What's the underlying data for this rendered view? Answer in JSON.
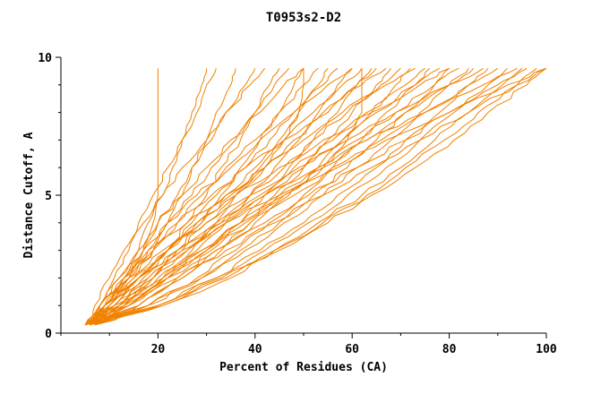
{
  "chart_data": {
    "type": "line",
    "title": "T0953s2-D2",
    "xlabel": "Percent of Residues (CA)",
    "ylabel": "Distance Cutoff, A",
    "xlim": [
      0,
      100
    ],
    "ylim": [
      0,
      10
    ],
    "x_ticks": [
      20,
      40,
      60,
      80,
      100
    ],
    "x_minor_step": 10,
    "y_ticks": [
      0,
      5,
      10
    ],
    "y_minor_step": 1,
    "grid": "off",
    "legend": "none",
    "line_color": "#f08000",
    "axis_color": "#000000",
    "background": "#ffffff",
    "cutoffs": [
      0.3,
      1,
      2,
      3,
      4,
      5,
      6,
      7,
      8,
      9,
      9.6
    ],
    "series": [
      [
        6,
        10,
        14,
        17,
        19,
        20,
        20,
        20,
        20,
        20,
        20
      ],
      [
        5,
        9,
        13,
        16,
        18,
        21,
        23,
        25,
        27,
        29,
        30
      ],
      [
        6,
        8,
        11,
        14,
        16,
        19,
        22,
        25,
        28,
        30,
        32
      ],
      [
        6,
        11,
        15,
        19,
        22,
        25,
        27,
        30,
        32,
        35,
        36
      ],
      [
        7,
        9,
        13,
        17,
        20,
        24,
        27,
        31,
        34,
        38,
        40
      ],
      [
        6,
        7,
        10,
        13,
        17,
        21,
        25,
        30,
        34,
        39,
        42
      ],
      [
        5,
        12,
        17,
        22,
        26,
        30,
        33,
        37,
        40,
        43,
        45
      ],
      [
        6,
        9,
        14,
        18,
        22,
        27,
        31,
        36,
        40,
        44,
        47
      ],
      [
        6,
        13,
        19,
        24,
        29,
        33,
        37,
        41,
        45,
        48,
        50
      ],
      [
        7,
        8,
        12,
        16,
        20,
        25,
        30,
        35,
        41,
        46,
        50
      ],
      [
        6,
        12,
        18,
        24,
        30,
        36,
        42,
        46,
        49,
        50,
        50
      ],
      [
        5,
        9,
        14,
        19,
        24,
        29,
        34,
        40,
        45,
        50,
        53
      ],
      [
        6,
        14,
        21,
        27,
        32,
        36,
        41,
        45,
        49,
        53,
        55
      ],
      [
        7,
        11,
        16,
        22,
        27,
        32,
        38,
        43,
        48,
        54,
        57
      ],
      [
        5,
        14,
        22,
        28,
        34,
        39,
        44,
        49,
        53,
        57,
        60
      ],
      [
        6,
        8,
        12,
        17,
        22,
        28,
        35,
        41,
        48,
        55,
        60
      ],
      [
        6,
        10,
        16,
        22,
        28,
        34,
        40,
        46,
        52,
        58,
        62
      ],
      [
        6,
        14,
        22,
        30,
        38,
        46,
        54,
        59,
        62,
        62,
        62
      ],
      [
        7,
        16,
        24,
        31,
        37,
        42,
        47,
        52,
        57,
        61,
        64
      ],
      [
        5,
        10,
        16,
        22,
        29,
        35,
        42,
        48,
        55,
        61,
        65
      ],
      [
        6,
        8,
        13,
        18,
        24,
        31,
        38,
        46,
        54,
        62,
        67
      ],
      [
        6,
        16,
        25,
        32,
        39,
        44,
        50,
        55,
        60,
        65,
        68
      ],
      [
        7,
        12,
        19,
        25,
        32,
        39,
        46,
        52,
        59,
        66,
        70
      ],
      [
        5,
        16,
        25,
        33,
        40,
        47,
        53,
        58,
        64,
        69,
        72
      ],
      [
        6,
        8,
        13,
        19,
        26,
        34,
        42,
        50,
        58,
        67,
        73
      ],
      [
        6,
        11,
        19,
        26,
        33,
        41,
        48,
        56,
        63,
        71,
        75
      ],
      [
        7,
        18,
        28,
        36,
        43,
        50,
        56,
        62,
        67,
        73,
        76
      ],
      [
        5,
        10,
        18,
        26,
        34,
        42,
        50,
        58,
        65,
        73,
        78
      ],
      [
        6,
        18,
        29,
        37,
        45,
        52,
        59,
        65,
        71,
        77,
        80
      ],
      [
        6,
        9,
        14,
        21,
        28,
        36,
        45,
        54,
        64,
        74,
        80
      ],
      [
        7,
        13,
        21,
        29,
        37,
        45,
        53,
        61,
        69,
        77,
        82
      ],
      [
        5,
        18,
        29,
        38,
        46,
        54,
        61,
        68,
        74,
        80,
        84
      ],
      [
        6,
        12,
        20,
        29,
        37,
        46,
        54,
        63,
        71,
        80,
        85
      ],
      [
        6,
        9,
        15,
        22,
        30,
        39,
        49,
        59,
        69,
        80,
        87
      ],
      [
        7,
        20,
        32,
        41,
        50,
        57,
        65,
        71,
        78,
        84,
        88
      ],
      [
        5,
        11,
        21,
        30,
        39,
        48,
        57,
        66,
        75,
        84,
        90
      ],
      [
        6,
        20,
        32,
        42,
        51,
        59,
        67,
        74,
        81,
        88,
        92
      ],
      [
        6,
        9,
        16,
        24,
        33,
        42,
        53,
        63,
        75,
        87,
        94
      ],
      [
        7,
        21,
        34,
        44,
        53,
        62,
        70,
        77,
        84,
        91,
        95
      ],
      [
        6,
        13,
        22,
        32,
        42,
        51,
        61,
        71,
        80,
        90,
        96
      ],
      [
        5,
        20,
        33,
        44,
        54,
        63,
        71,
        79,
        86,
        94,
        98
      ],
      [
        6,
        21,
        35,
        45,
        55,
        64,
        73,
        81,
        88,
        96,
        100
      ],
      [
        7,
        14,
        24,
        34,
        44,
        54,
        64,
        74,
        84,
        94,
        100
      ],
      [
        6,
        9,
        16,
        25,
        34,
        45,
        56,
        67,
        80,
        92,
        100
      ]
    ]
  }
}
